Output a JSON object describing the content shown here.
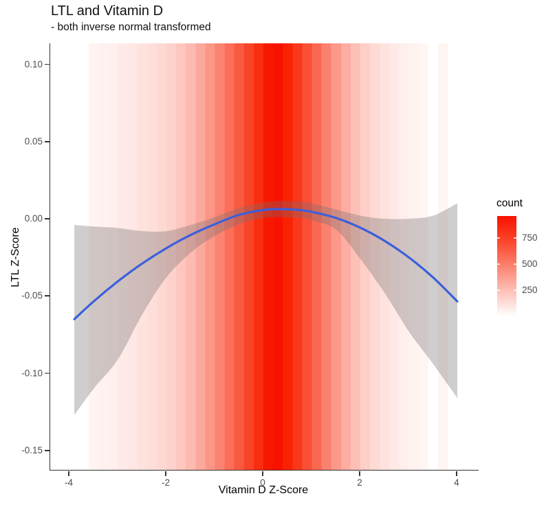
{
  "title": "LTL and Vitamin D",
  "subtitle": "- both inverse normal transformed",
  "chart_data": {
    "type": "line+area+heatmap",
    "title": "LTL and Vitamin D",
    "subtitle": "- both inverse normal transformed",
    "xlabel": "Vitamin D Z-Score",
    "ylabel": "LTL Z-Score",
    "xlim": [
      -4.4,
      4.5
    ],
    "ylim": [
      -0.162,
      0.114
    ],
    "grid": false,
    "x_ticks": [
      {
        "v": -4,
        "label": "-4"
      },
      {
        "v": -2,
        "label": "-2"
      },
      {
        "v": 0,
        "label": "0"
      },
      {
        "v": 2,
        "label": "2"
      },
      {
        "v": 4,
        "label": "4"
      }
    ],
    "y_ticks": [
      {
        "v": 0.1,
        "label": "0.10"
      },
      {
        "v": 0.05,
        "label": "0.05"
      },
      {
        "v": 0.0,
        "label": "0.00"
      },
      {
        "v": -0.05,
        "label": "-0.05"
      },
      {
        "v": -0.1,
        "label": "-0.10"
      },
      {
        "v": -0.15,
        "label": "-0.15"
      }
    ],
    "legend": {
      "title": "count",
      "position": "right",
      "min": 0,
      "max": 960,
      "ticks": [
        {
          "v": 750,
          "label": "750"
        },
        {
          "v": 500,
          "label": "500"
        },
        {
          "v": 250,
          "label": "250"
        }
      ],
      "low_color": "#ffffff",
      "high_color": "#f81100",
      "gradient": [
        "#f81100",
        "#fb452b",
        "#fb8371",
        "#fdc1b8",
        "#ffffff"
      ]
    },
    "histogram_bins": {
      "bin_width": 0.2,
      "x0": [
        -3.6,
        -3.4,
        -3.2,
        -3.0,
        -2.8,
        -2.6,
        -2.4,
        -2.2,
        -2.0,
        -1.8,
        -1.6,
        -1.4,
        -1.2,
        -1.0,
        -0.8,
        -0.6,
        -0.4,
        -0.2,
        0.0,
        0.2,
        0.4,
        0.6,
        0.8,
        1.0,
        1.2,
        1.4,
        1.6,
        1.8,
        2.0,
        2.2,
        2.4,
        2.6,
        2.8,
        3.0,
        3.2,
        3.4,
        3.6
      ],
      "count": [
        45,
        55,
        65,
        80,
        95,
        115,
        135,
        155,
        180,
        225,
        280,
        345,
        420,
        500,
        585,
        670,
        755,
        845,
        930,
        955,
        890,
        805,
        710,
        610,
        510,
        415,
        330,
        255,
        195,
        150,
        115,
        88,
        66,
        50,
        38,
        0,
        42
      ]
    },
    "smooth": {
      "line_color": "#3a5fdc",
      "ribbon_color": "rgba(118,112,112,0.35)",
      "x": [
        -3.9,
        -3.5,
        -3.0,
        -2.5,
        -2.0,
        -1.5,
        -1.0,
        -0.5,
        0.0,
        0.35,
        0.75,
        1.0,
        1.5,
        2.0,
        2.5,
        3.0,
        3.5,
        4.0
      ],
      "y": [
        -0.065,
        -0.0535,
        -0.0405,
        -0.029,
        -0.019,
        -0.0105,
        -0.0035,
        0.0025,
        0.0057,
        0.0063,
        0.0057,
        0.0045,
        0.0005,
        -0.0058,
        -0.0143,
        -0.025,
        -0.038,
        -0.0535
      ],
      "hi": [
        -0.004,
        -0.005,
        -0.006,
        -0.008,
        -0.008,
        -0.004,
        0.001,
        0.007,
        0.0105,
        0.0115,
        0.011,
        0.01,
        0.006,
        0.002,
        0.0,
        0.0,
        0.002,
        0.01
      ],
      "lo": [
        -0.127,
        -0.11,
        -0.091,
        -0.062,
        -0.038,
        -0.022,
        -0.011,
        -0.0035,
        0.0005,
        0.001,
        0.0005,
        -0.001,
        -0.007,
        -0.026,
        -0.048,
        -0.073,
        -0.094,
        -0.116
      ]
    }
  }
}
